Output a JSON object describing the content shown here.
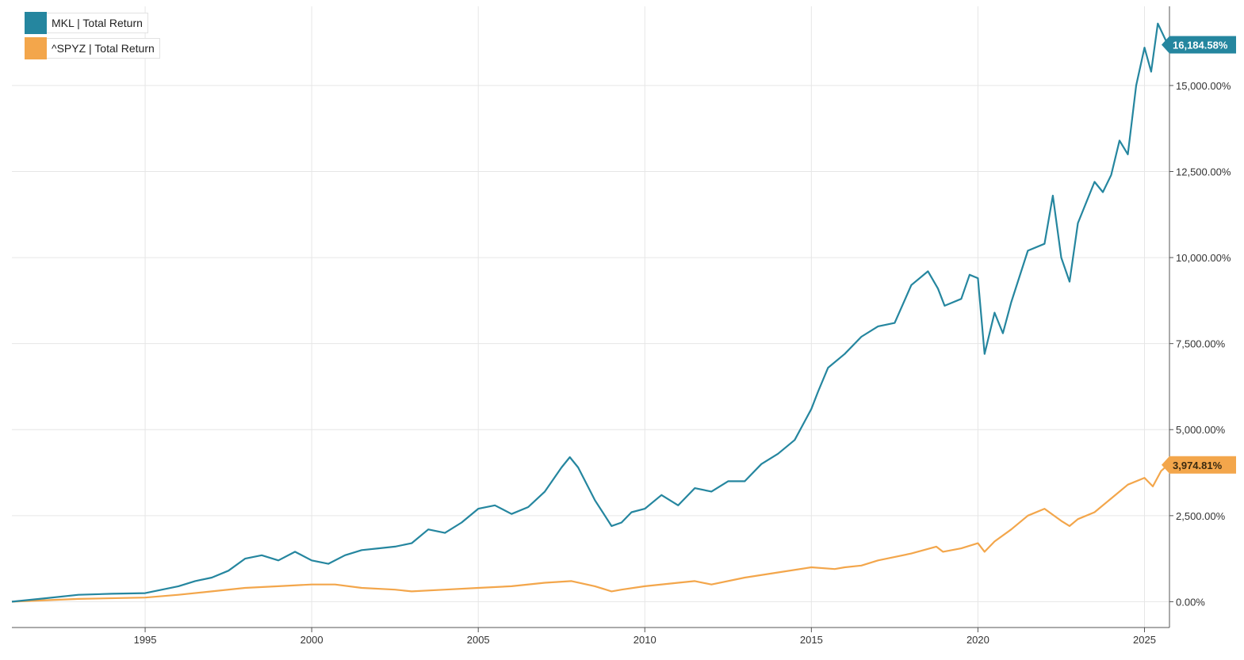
{
  "chart_data": {
    "type": "line",
    "title": "",
    "xlabel": "",
    "ylabel": "",
    "x_ticks": [
      "1995",
      "2000",
      "2005",
      "2010",
      "2015",
      "2020",
      "2025"
    ],
    "x_tick_values": [
      1995,
      2000,
      2005,
      2010,
      2015,
      2020,
      2025
    ],
    "y_ticks": [
      "0.00%",
      "2,500.00%",
      "5,000.00%",
      "7,500.00%",
      "10,000.00%",
      "12,500.00%",
      "15,000.00%"
    ],
    "y_tick_values": [
      0,
      2500,
      5000,
      7500,
      10000,
      12500,
      15000
    ],
    "xlim": [
      1991.0,
      2025.75
    ],
    "ylim": [
      -750,
      17300
    ],
    "grid": true,
    "y_axis_side": "right",
    "legend_position": "top-left",
    "series": [
      {
        "name": "MKL | Total Return",
        "color": "#25869F",
        "end_label": "16,184.58%",
        "x": [
          1991.0,
          1992.0,
          1993.0,
          1994.0,
          1995.0,
          1996.0,
          1996.5,
          1997.0,
          1997.5,
          1998.0,
          1998.5,
          1999.0,
          1999.5,
          2000.0,
          2000.5,
          2001.0,
          2001.5,
          2002.0,
          2002.5,
          2003.0,
          2003.5,
          2004.0,
          2004.5,
          2005.0,
          2005.5,
          2006.0,
          2006.5,
          2007.0,
          2007.5,
          2007.75,
          2008.0,
          2008.5,
          2008.8,
          2009.0,
          2009.3,
          2009.6,
          2010.0,
          2010.5,
          2011.0,
          2011.5,
          2012.0,
          2012.5,
          2013.0,
          2013.5,
          2014.0,
          2014.5,
          2015.0,
          2015.2,
          2015.5,
          2016.0,
          2016.5,
          2017.0,
          2017.5,
          2018.0,
          2018.5,
          2018.8,
          2019.0,
          2019.5,
          2019.75,
          2020.0,
          2020.2,
          2020.5,
          2020.75,
          2021.0,
          2021.5,
          2022.0,
          2022.25,
          2022.5,
          2022.75,
          2023.0,
          2023.5,
          2023.75,
          2024.0,
          2024.25,
          2024.5,
          2024.75,
          2025.0,
          2025.2,
          2025.4,
          2025.7
        ],
        "y": [
          0,
          100,
          200,
          230,
          250,
          450,
          600,
          700,
          900,
          1250,
          1350,
          1200,
          1450,
          1200,
          1100,
          1350,
          1500,
          1550,
          1600,
          1700,
          2100,
          2000,
          2300,
          2700,
          2800,
          2550,
          2750,
          3200,
          3900,
          4200,
          3900,
          2950,
          2500,
          2200,
          2300,
          2600,
          2700,
          3100,
          2800,
          3300,
          3200,
          3500,
          3500,
          4000,
          4300,
          4700,
          5600,
          6100,
          6800,
          7200,
          7700,
          8000,
          8100,
          9200,
          9600,
          9100,
          8600,
          8800,
          9500,
          9400,
          7200,
          8400,
          7800,
          8700,
          10200,
          10400,
          11800,
          10000,
          9300,
          11000,
          12200,
          11900,
          12400,
          13400,
          13000,
          15000,
          16100,
          15400,
          16800,
          16184.58
        ]
      },
      {
        "name": "^SPYZ | Total Return",
        "color": "#F3A64B",
        "end_label": "3,974.81%",
        "x": [
          1991.0,
          1993.0,
          1995.0,
          1996.0,
          1997.0,
          1998.0,
          1999.0,
          2000.0,
          2000.7,
          2001.5,
          2002.5,
          2003.0,
          2004.0,
          2005.0,
          2006.0,
          2007.0,
          2007.8,
          2008.5,
          2009.0,
          2009.3,
          2010.0,
          2011.0,
          2011.5,
          2012.0,
          2013.0,
          2014.0,
          2015.0,
          2015.7,
          2016.0,
          2016.5,
          2017.0,
          2018.0,
          2018.75,
          2018.95,
          2019.5,
          2020.0,
          2020.2,
          2020.5,
          2021.0,
          2021.5,
          2022.0,
          2022.5,
          2022.75,
          2023.0,
          2023.5,
          2024.0,
          2024.5,
          2025.0,
          2025.25,
          2025.5,
          2025.7
        ],
        "y": [
          0,
          80,
          120,
          200,
          300,
          400,
          450,
          500,
          500,
          400,
          350,
          300,
          350,
          400,
          450,
          550,
          600,
          450,
          300,
          350,
          450,
          550,
          600,
          500,
          700,
          850,
          1000,
          950,
          1000,
          1050,
          1200,
          1400,
          1600,
          1450,
          1550,
          1700,
          1450,
          1750,
          2100,
          2500,
          2700,
          2350,
          2200,
          2400,
          2600,
          3000,
          3400,
          3600,
          3350,
          3800,
          3974.81
        ]
      }
    ]
  }
}
